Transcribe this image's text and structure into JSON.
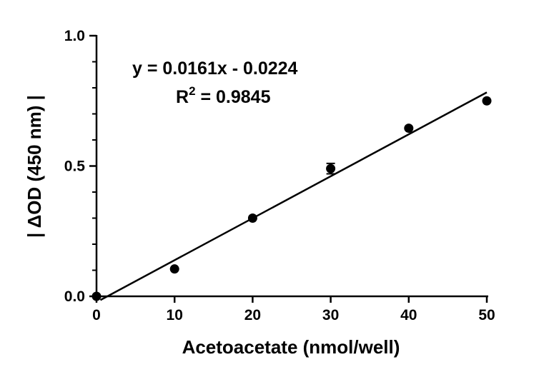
{
  "chart_data": {
    "type": "scatter",
    "xlabel": "Acetoacetate (nmol/well)",
    "ylabel": "| ΔOD (450 nm) |",
    "xlim": [
      0,
      50
    ],
    "ylim": [
      0,
      1.0
    ],
    "x_ticks": [
      "0",
      "10",
      "20",
      "30",
      "40",
      "50"
    ],
    "y_ticks": [
      "0.0",
      "0.5",
      "1.0"
    ],
    "y_minor_step": 0.1,
    "grid": false,
    "points": [
      {
        "x": 0,
        "y": 0.0,
        "err": 0
      },
      {
        "x": 10,
        "y": 0.105,
        "err": 0
      },
      {
        "x": 20,
        "y": 0.3,
        "err": 0
      },
      {
        "x": 30,
        "y": 0.49,
        "err": 0.02
      },
      {
        "x": 40,
        "y": 0.645,
        "err": 0
      },
      {
        "x": 50,
        "y": 0.75,
        "err": 0
      }
    ],
    "fit": {
      "slope": 0.0161,
      "intercept": -0.0224,
      "x_range": [
        0.5,
        50
      ]
    },
    "annotations": {
      "equation": "y = 0.0161x - 0.0224",
      "r2_prefix": "R",
      "r2_sup": "2",
      "r2_value": " = 0.9845"
    },
    "colors": {
      "marker": "#000000",
      "line": "#000000",
      "axis": "#000000"
    }
  }
}
